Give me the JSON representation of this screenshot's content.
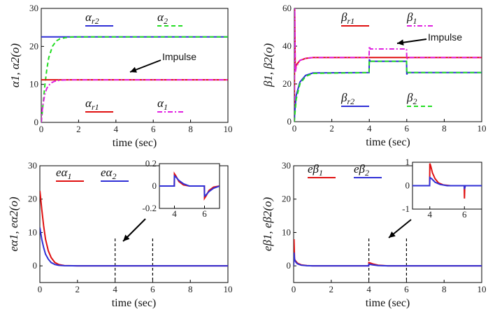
{
  "chart_data": [
    {
      "id": "alpha",
      "type": "line",
      "xlabel": "time (sec)",
      "ylabel": "α1, α2(o)",
      "xlim": [
        0,
        10
      ],
      "ylim": [
        0,
        30
      ],
      "xticks": [
        "0",
        "2",
        "4",
        "6",
        "8",
        "10"
      ],
      "yticks": [
        "0",
        "10",
        "20",
        "30"
      ],
      "annotation": "Impulse",
      "series": [
        {
          "name": "αr2",
          "color": "#2f2fd6",
          "style": "solid",
          "x": [
            0,
            10
          ],
          "y": [
            22.5,
            22.5
          ]
        },
        {
          "name": "α2",
          "color": "#22dd22",
          "style": "dashed",
          "x": [
            0,
            0.1,
            0.2,
            0.3,
            0.4,
            0.6,
            0.8,
            1.0,
            1.3,
            1.6,
            2,
            10
          ],
          "y": [
            0,
            5,
            10,
            14,
            17,
            20,
            21.4,
            22.0,
            22.3,
            22.45,
            22.5,
            22.5
          ]
        },
        {
          "name": "αr1",
          "color": "#e01010",
          "style": "solid",
          "x": [
            0,
            10
          ],
          "y": [
            11.2,
            11.2
          ]
        },
        {
          "name": "α1",
          "color": "#e020e0",
          "style": "dashdot",
          "x": [
            0,
            0.05,
            0.1,
            0.2,
            0.3,
            0.5,
            0.7,
            1.0,
            1.5,
            10
          ],
          "y": [
            0,
            3,
            5,
            7.5,
            9,
            10.3,
            10.8,
            11.1,
            11.2,
            11.2
          ]
        }
      ],
      "legend": [
        "αr2",
        "α2",
        "αr1",
        "α1"
      ]
    },
    {
      "id": "beta",
      "type": "line",
      "xlabel": "time (sec)",
      "ylabel": "β1, β2(o)",
      "xlim": [
        0,
        10
      ],
      "ylim": [
        0,
        60
      ],
      "xticks": [
        "0",
        "2",
        "4",
        "6",
        "8",
        "10"
      ],
      "yticks": [
        "0",
        "20",
        "40",
        "60"
      ],
      "annotation": "Impulse",
      "series": [
        {
          "name": "βr1",
          "color": "#e01010",
          "style": "solid",
          "x": [
            0,
            0.02,
            0.05,
            0.1,
            0.3,
            0.6,
            1,
            4,
            4.02,
            6,
            6.02,
            10
          ],
          "y": [
            0,
            60,
            28,
            30,
            32.5,
            33.5,
            34,
            34,
            34,
            34,
            34,
            34
          ]
        },
        {
          "name": "β1",
          "color": "#e020e0",
          "style": "dashdot",
          "x": [
            0,
            0.02,
            0.05,
            0.1,
            0.3,
            0.6,
            1,
            3.99,
            4.0,
            4.05,
            5.99,
            6.0,
            6.05,
            10
          ],
          "y": [
            0,
            60,
            26,
            29,
            32.5,
            33.5,
            34,
            34,
            40,
            38.5,
            38.5,
            33,
            34,
            34
          ]
        },
        {
          "name": "βr2",
          "color": "#2f2fd6",
          "style": "solid",
          "x": [
            0,
            0.02,
            0.05,
            0.1,
            0.3,
            0.6,
            1,
            3.99,
            4.0,
            4.05,
            5.99,
            6.0,
            6.05,
            10
          ],
          "y": [
            0,
            5,
            8,
            14,
            21,
            24.5,
            25.8,
            26,
            33,
            32,
            32,
            25,
            26,
            26
          ]
        },
        {
          "name": "β2",
          "color": "#22dd22",
          "style": "dashed",
          "x": [
            0,
            0.02,
            0.05,
            0.1,
            0.3,
            0.6,
            1,
            3.99,
            4.0,
            4.05,
            5.99,
            6.0,
            6.05,
            10
          ],
          "y": [
            0,
            3,
            6,
            12,
            20,
            24,
            25.6,
            26,
            32.5,
            32,
            32,
            25.5,
            26,
            26
          ]
        }
      ],
      "legend": [
        "βr1",
        "β1",
        "βr2",
        "β2"
      ]
    },
    {
      "id": "ealpha",
      "type": "line",
      "xlabel": "time (sec)",
      "ylabel": "eα1, eα2(o)",
      "xlim": [
        0,
        10
      ],
      "ylim": [
        -5,
        30
      ],
      "xticks": [
        "0",
        "2",
        "4",
        "6",
        "8",
        "10"
      ],
      "yticks": [
        "0",
        "10",
        "20",
        "30"
      ],
      "markers": [
        4,
        6
      ],
      "series": [
        {
          "name": "eα1",
          "color": "#e01010",
          "x": [
            0,
            0.03,
            0.1,
            0.2,
            0.3,
            0.45,
            0.6,
            0.8,
            1.0,
            1.3,
            2,
            10
          ],
          "y": [
            22.5,
            21,
            17,
            12,
            8,
            4.5,
            2.5,
            1.0,
            0.4,
            0.1,
            0,
            0
          ]
        },
        {
          "name": "eα2",
          "color": "#2f2fd6",
          "x": [
            0,
            0.03,
            0.1,
            0.2,
            0.3,
            0.45,
            0.6,
            0.8,
            1.0,
            1.3,
            2,
            10
          ],
          "y": [
            11.5,
            10.5,
            8,
            5.5,
            3.5,
            2,
            1,
            0.4,
            0.15,
            0.05,
            0,
            0
          ]
        }
      ],
      "legend": [
        "eα1",
        "eα2"
      ],
      "inset": {
        "xlim": [
          3,
          7
        ],
        "ylim": [
          -0.2,
          0.2
        ],
        "xticks": [
          "4",
          "6"
        ],
        "yticks": [
          "0.2",
          "0",
          "-0.2"
        ],
        "series": [
          {
            "name": "eα1",
            "color": "#e01010",
            "x": [
              3,
              3.99,
              4.0,
              4.1,
              4.3,
              4.6,
              5,
              5.99,
              6.0,
              6.1,
              6.3,
              6.6,
              7
            ],
            "y": [
              0,
              0,
              0.11,
              0.09,
              0.04,
              0.01,
              0,
              0,
              -0.11,
              -0.09,
              -0.04,
              -0.01,
              0
            ]
          },
          {
            "name": "eα2",
            "color": "#2f2fd6",
            "x": [
              3,
              3.99,
              4.0,
              4.1,
              4.3,
              4.6,
              5,
              5.99,
              6.0,
              6.1,
              6.3,
              6.6,
              7
            ],
            "y": [
              0,
              0,
              0.09,
              0.08,
              0.05,
              0.02,
              0,
              0,
              -0.09,
              -0.08,
              -0.05,
              -0.02,
              0
            ]
          }
        ]
      }
    },
    {
      "id": "ebeta",
      "type": "line",
      "xlabel": "time (sec)",
      "ylabel": "eβ1, eβ2(o)",
      "xlim": [
        0,
        10
      ],
      "ylim": [
        -5,
        30
      ],
      "xticks": [
        "0",
        "2",
        "4",
        "6",
        "8",
        "10"
      ],
      "yticks": [
        "0",
        "10",
        "20",
        "30"
      ],
      "markers": [
        4,
        6
      ],
      "series": [
        {
          "name": "eβ1",
          "color": "#e01010",
          "x": [
            0,
            0.02,
            0.05,
            0.1,
            0.2,
            0.4,
            0.7,
            1,
            3.99,
            4.0,
            4.2,
            4.5,
            5,
            10
          ],
          "y": [
            0,
            8,
            2,
            1.5,
            0.8,
            0.3,
            0.1,
            0,
            0,
            1,
            0.6,
            0.2,
            0,
            0
          ]
        },
        {
          "name": "eβ2",
          "color": "#2f2fd6",
          "x": [
            0,
            0.02,
            0.05,
            0.1,
            0.2,
            0.4,
            0.7,
            1,
            3.99,
            4.0,
            4.2,
            4.5,
            5,
            10
          ],
          "y": [
            0,
            4,
            2,
            1.2,
            0.6,
            0.2,
            0.05,
            0,
            0,
            0.5,
            0.3,
            0.1,
            0,
            0
          ]
        }
      ],
      "legend": [
        "eβ1",
        "eβ2"
      ],
      "inset": {
        "xlim": [
          3,
          7
        ],
        "ylim": [
          -1,
          1
        ],
        "xticks": [
          "4",
          "6"
        ],
        "yticks": [
          "1",
          "0",
          "-1"
        ],
        "series": [
          {
            "name": "eβ1",
            "color": "#e01010",
            "x": [
              3,
              3.99,
              4.0,
              4.05,
              4.15,
              4.3,
              4.5,
              4.8,
              5.2,
              5.99,
              6.0,
              6.02,
              6.05,
              7
            ],
            "y": [
              0,
              0,
              0.95,
              0.85,
              0.55,
              0.3,
              0.12,
              0.03,
              0,
              0,
              -0.55,
              -0.1,
              0,
              0
            ]
          },
          {
            "name": "eβ2",
            "color": "#2f2fd6",
            "x": [
              3,
              3.99,
              4.0,
              4.1,
              4.3,
              4.6,
              5,
              5.99,
              6.0,
              6.05,
              7
            ],
            "y": [
              0,
              0,
              0.35,
              0.3,
              0.15,
              0.05,
              0,
              0,
              -0.15,
              0,
              0
            ]
          }
        ]
      }
    }
  ]
}
